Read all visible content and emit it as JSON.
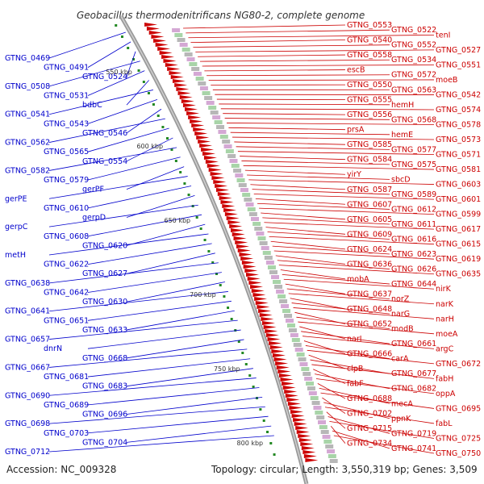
{
  "title": "Geobacillus thermodenitrificans NG80-2, complete genome",
  "accession": "Accession: NC_009328",
  "summary": "Topology: circular; Length: 3,550,319 bp; Genes: 3,509",
  "colors": {
    "forward": "#0000cc",
    "reverse": "#cc0000",
    "backbone": "#888888",
    "tick": "#228822"
  },
  "kbp_marks": [
    "550 kbp",
    "600 kbp",
    "650 kbp",
    "700 kbp",
    "750 kbp",
    "800 kbp"
  ],
  "left_labels": [
    "GTNG_0469",
    "GTNG_0491",
    "GTNG_0524",
    "GTNG_0508",
    "GTNG_0531",
    "bdbC",
    "GTNG_0541",
    "GTNG_0543",
    "GTNG_0546",
    "GTNG_0562",
    "GTNG_0565",
    "GTNG_0554",
    "GTNG_0582",
    "GTNG_0579",
    "gerPF",
    "gerPE",
    "GTNG_0610",
    "gerpD",
    "gerpC",
    "GTNG_0608",
    "GTNG_0620",
    "metH",
    "GTNG_0622",
    "GTNG_0627",
    "GTNG_0638",
    "GTNG_0642",
    "GTNG_0630",
    "GTNG_0641",
    "GTNG_0651",
    "GTNG_0633",
    "GTNG_0657",
    "dnrN",
    "GTNG_0668",
    "GTNG_0667",
    "GTNG_0681",
    "GTNG_0683",
    "GTNG_0690",
    "GTNG_0689",
    "GTNG_0696",
    "GTNG_0698",
    "GTNG_0703",
    "GTNG_0704",
    "GTNG_0712"
  ],
  "right_labels": [
    "GTNG_0553",
    "GTNG_0522",
    "tenI",
    "GTNG_0540",
    "GTNG_0552",
    "GTNG_0527",
    "GTNG_0558",
    "GTNG_0534",
    "GTNG_0551",
    "escB",
    "GTNG_0572",
    "moeB",
    "GTNG_0550",
    "GTNG_0563",
    "GTNG_0542",
    "GTNG_0555",
    "hemH",
    "GTNG_0574",
    "GTNG_0556",
    "GTNG_0568",
    "GTNG_0578",
    "prsA",
    "hemE",
    "GTNG_0573",
    "GTNG_0585",
    "GTNG_0577",
    "GTNG_0571",
    "GTNG_0584",
    "GTNG_0575",
    "GTNG_0581",
    "yirY",
    "sbcD",
    "GTNG_0603",
    "GTNG_0587",
    "GTNG_0589",
    "GTNG_0601",
    "GTNG_0607",
    "GTNG_0612",
    "GTNG_0599",
    "GTNG_0605",
    "GTNG_0611",
    "GTNG_0617",
    "GTNG_0609",
    "GTNG_0616",
    "GTNG_0615",
    "GTNG_0624",
    "GTNG_0623",
    "GTNG_0619",
    "GTNG_0636",
    "GTNG_0626",
    "GTNG_0635",
    "mobA",
    "GTNG_0644",
    "nirK",
    "GTNG_0637",
    "norZ",
    "narK",
    "GTNG_0648",
    "narG",
    "narH",
    "GTNG_0652",
    "modB",
    "moeA",
    "narI",
    "GTNG_0661",
    "argC",
    "GTNG_0666",
    "carA",
    "GTNG_0672",
    "clpB",
    "GTNG_0677",
    "fabH",
    "fabF",
    "GTNG_0682",
    "oppA",
    "GTNG_0688",
    "mecA",
    "GTNG_0695",
    "GTNG_0702",
    "ppnK",
    "fabL",
    "GTNG_0715",
    "GTNG_0719",
    "GTNG_0725",
    "GTNG_0734",
    "GTNG_0741",
    "GTNG_0750"
  ]
}
